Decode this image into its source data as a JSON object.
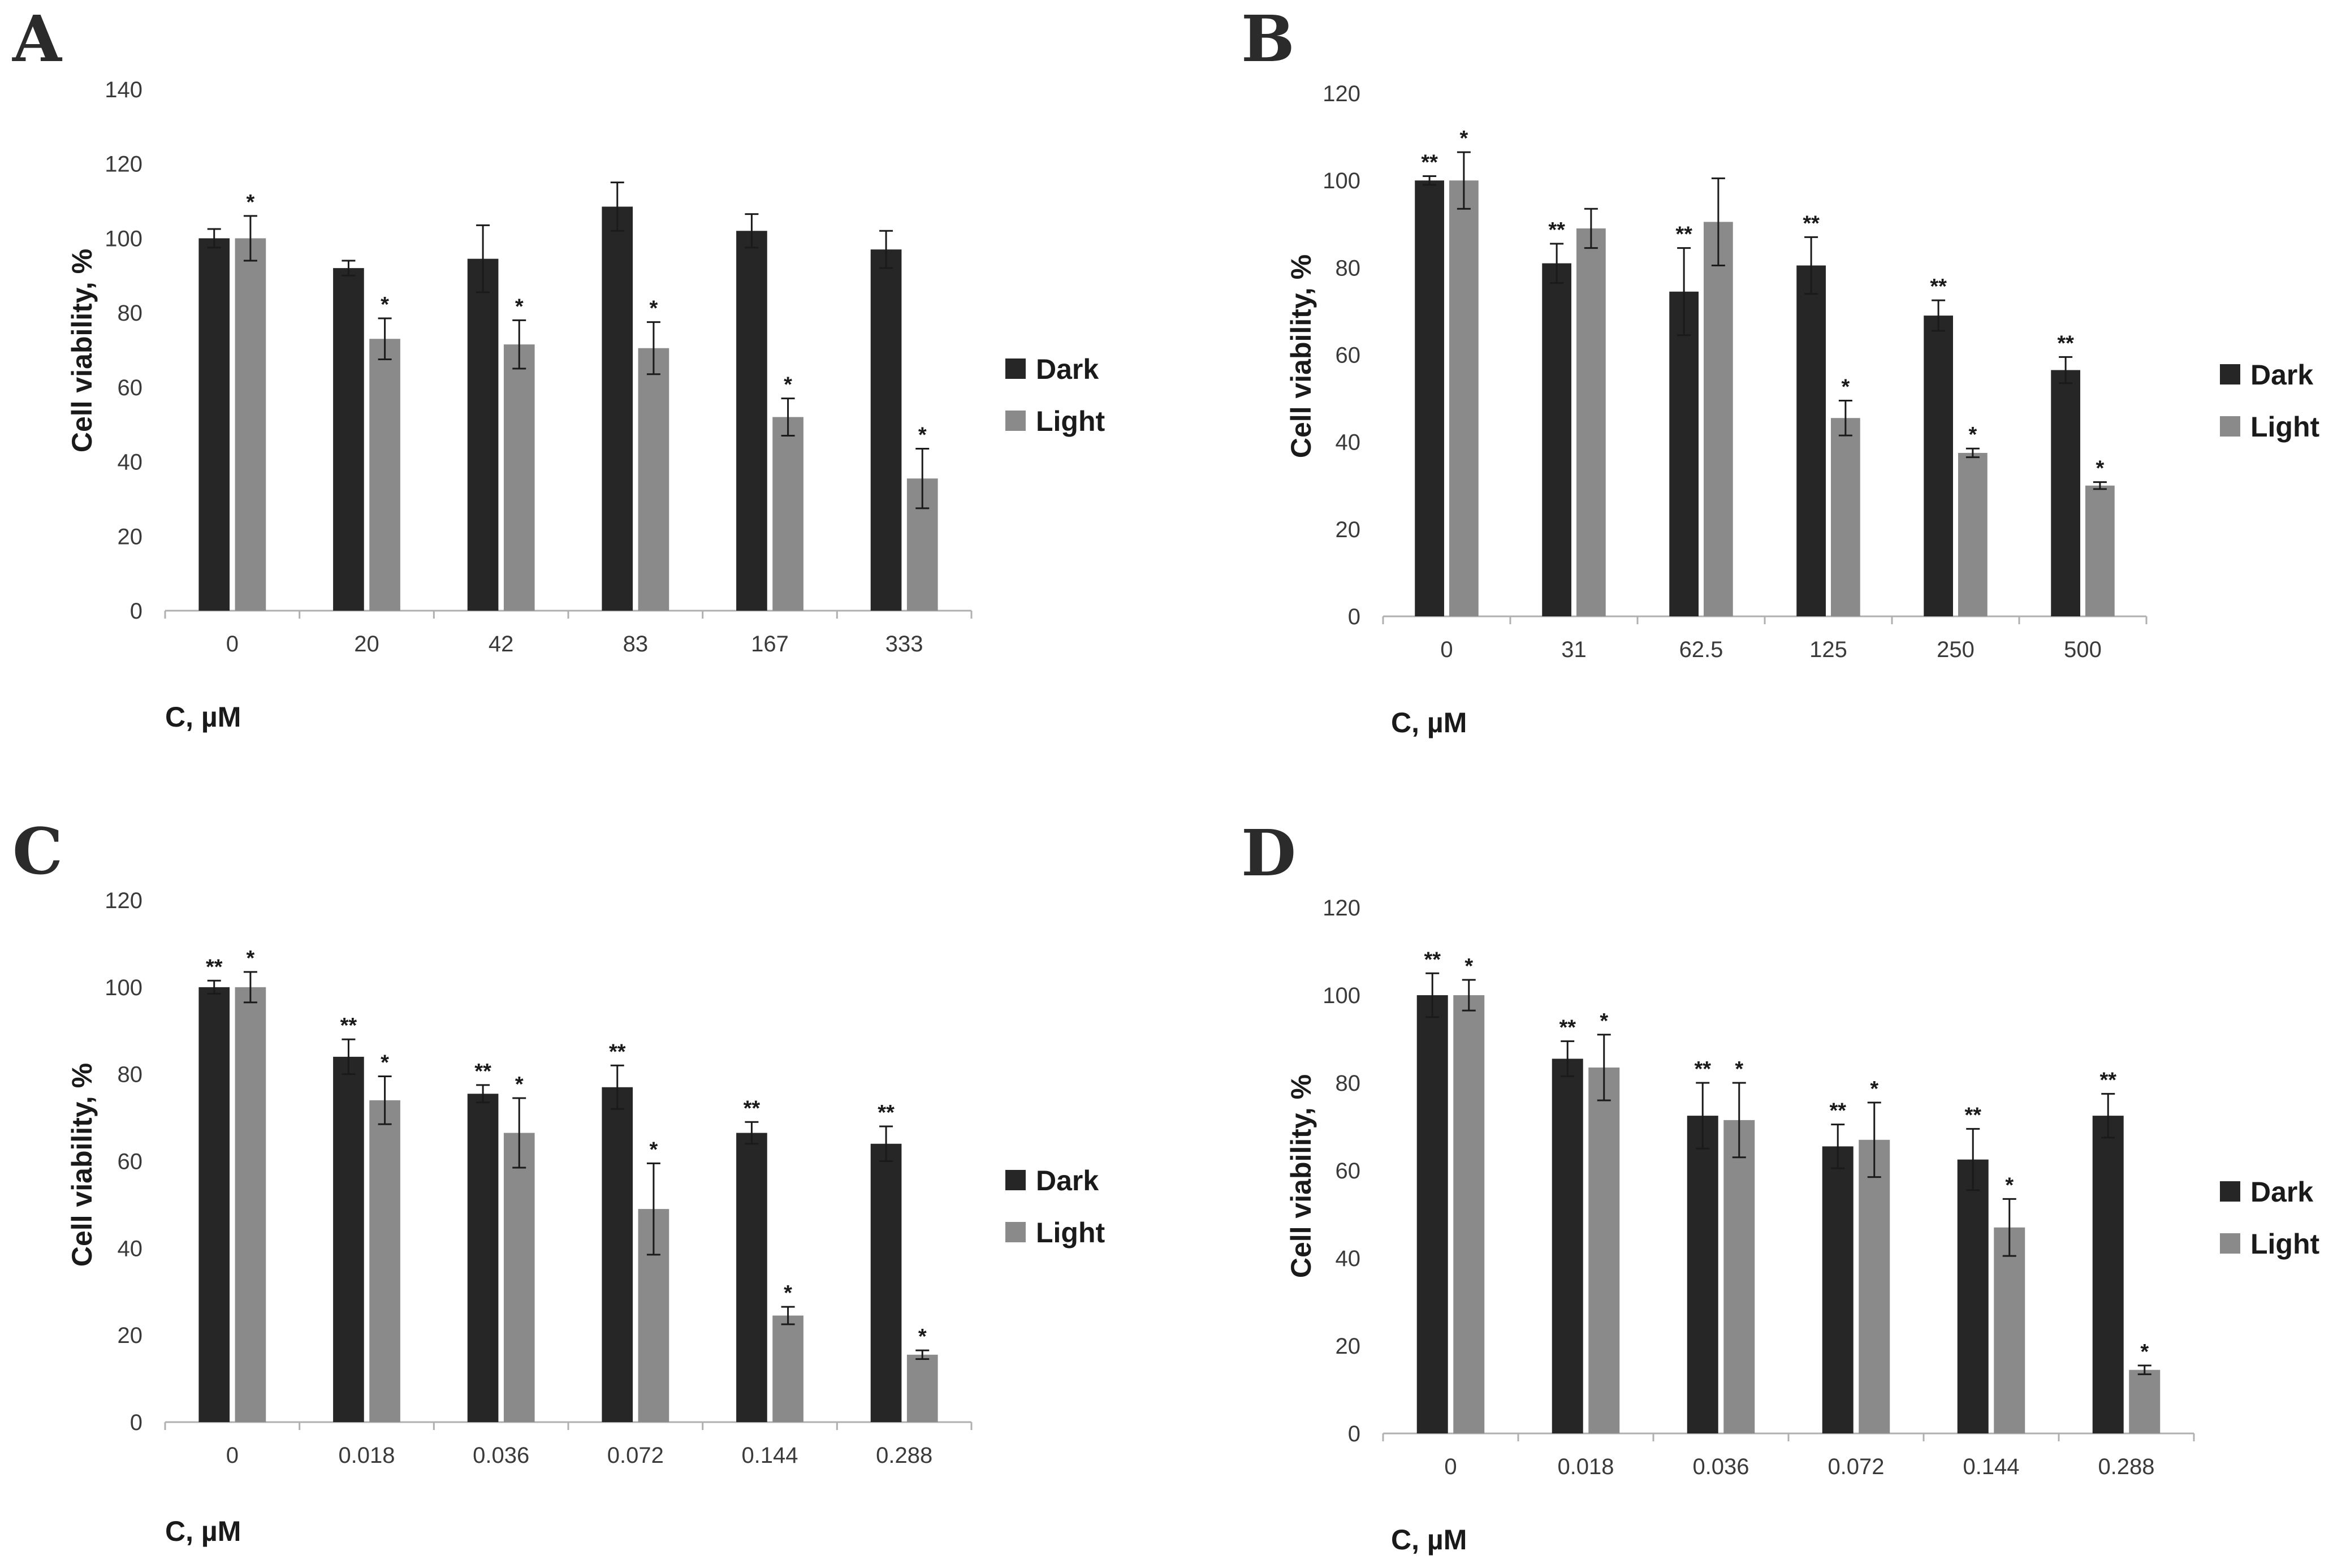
{
  "figure": {
    "colors": {
      "dark": "#262626",
      "light": "#8a8a8a",
      "axis": "#b0b0b0",
      "text": "#1a1a1a"
    }
  },
  "chart_data": [
    {
      "panel": "A",
      "type": "bar",
      "xlabel": "C, µM",
      "ylabel": "Cell viability, %",
      "ylim": [
        0,
        140
      ],
      "yticks": [
        0,
        20,
        40,
        60,
        80,
        100,
        120,
        140
      ],
      "categories": [
        "0",
        "20",
        "42",
        "83",
        "167",
        "333"
      ],
      "legend": "right",
      "series": [
        {
          "name": "Dark",
          "values": [
            100,
            92,
            94.5,
            108.5,
            102,
            97
          ],
          "errors": [
            2.5,
            2,
            9,
            6.5,
            4.5,
            5
          ],
          "significance": [
            "",
            "",
            "",
            "",
            "",
            ""
          ]
        },
        {
          "name": "Light",
          "values": [
            100,
            73,
            71.5,
            70.5,
            52,
            35.5
          ],
          "errors": [
            6,
            5.5,
            6.5,
            7,
            5,
            8
          ],
          "significance": [
            "*",
            "*",
            "*",
            "*",
            "*",
            "*"
          ]
        }
      ]
    },
    {
      "panel": "B",
      "type": "bar",
      "xlabel": "C, µM",
      "ylabel": "Cell viability, %",
      "ylim": [
        0,
        120
      ],
      "yticks": [
        0,
        20,
        40,
        60,
        80,
        100,
        120
      ],
      "categories": [
        "0",
        "31",
        "62.5",
        "125",
        "250",
        "500"
      ],
      "legend": "right",
      "series": [
        {
          "name": "Dark",
          "values": [
            100,
            81,
            74.5,
            80.5,
            69,
            56.5
          ],
          "errors": [
            1,
            4.5,
            10,
            6.5,
            3.5,
            3
          ],
          "significance": [
            "**",
            "**",
            "**",
            "**",
            "**",
            "**"
          ]
        },
        {
          "name": "Light",
          "values": [
            100,
            89,
            90.5,
            45.5,
            37.5,
            30
          ],
          "errors": [
            6.5,
            4.5,
            10,
            4,
            1,
            0.8
          ],
          "significance": [
            "*",
            "",
            "",
            "*",
            "*",
            "*"
          ]
        }
      ]
    },
    {
      "panel": "C",
      "type": "bar",
      "xlabel": "C, µM",
      "ylabel": "Cell viability, %",
      "ylim": [
        0,
        120
      ],
      "yticks": [
        0,
        20,
        40,
        60,
        80,
        100,
        120
      ],
      "categories": [
        "0",
        "0.018",
        "0.036",
        "0.072",
        "0.144",
        "0.288"
      ],
      "legend": "right",
      "series": [
        {
          "name": "Dark",
          "values": [
            100,
            84,
            75.5,
            77,
            66.5,
            64
          ],
          "errors": [
            1.5,
            4,
            2,
            5,
            2.5,
            4
          ],
          "significance": [
            "**",
            "**",
            "**",
            "**",
            "**",
            "**"
          ]
        },
        {
          "name": "Light",
          "values": [
            100,
            74,
            66.5,
            49,
            24.5,
            15.5
          ],
          "errors": [
            3.5,
            5.5,
            8,
            10.5,
            2,
            1
          ],
          "significance": [
            "*",
            "*",
            "*",
            "*",
            "*",
            "*"
          ]
        }
      ]
    },
    {
      "panel": "D",
      "type": "bar",
      "xlabel": "C, µM",
      "ylabel": "Cell viability, %",
      "ylim": [
        0,
        120
      ],
      "yticks": [
        0,
        20,
        40,
        60,
        80,
        100,
        120
      ],
      "categories": [
        "0",
        "0.018",
        "0.036",
        "0.072",
        "0.144",
        "0.288"
      ],
      "legend": "right",
      "series": [
        {
          "name": "Dark",
          "values": [
            100,
            85.5,
            72.5,
            65.5,
            62.5,
            72.5
          ],
          "errors": [
            5,
            4,
            7.5,
            5,
            7,
            5
          ],
          "significance": [
            "**",
            "**",
            "**",
            "**",
            "**",
            "**"
          ]
        },
        {
          "name": "Light",
          "values": [
            100,
            83.5,
            71.5,
            67,
            47,
            14.5
          ],
          "errors": [
            3.5,
            7.5,
            8.5,
            8.5,
            6.5,
            1
          ],
          "significance": [
            "*",
            "*",
            "*",
            "*",
            "*",
            "*"
          ]
        }
      ]
    }
  ]
}
